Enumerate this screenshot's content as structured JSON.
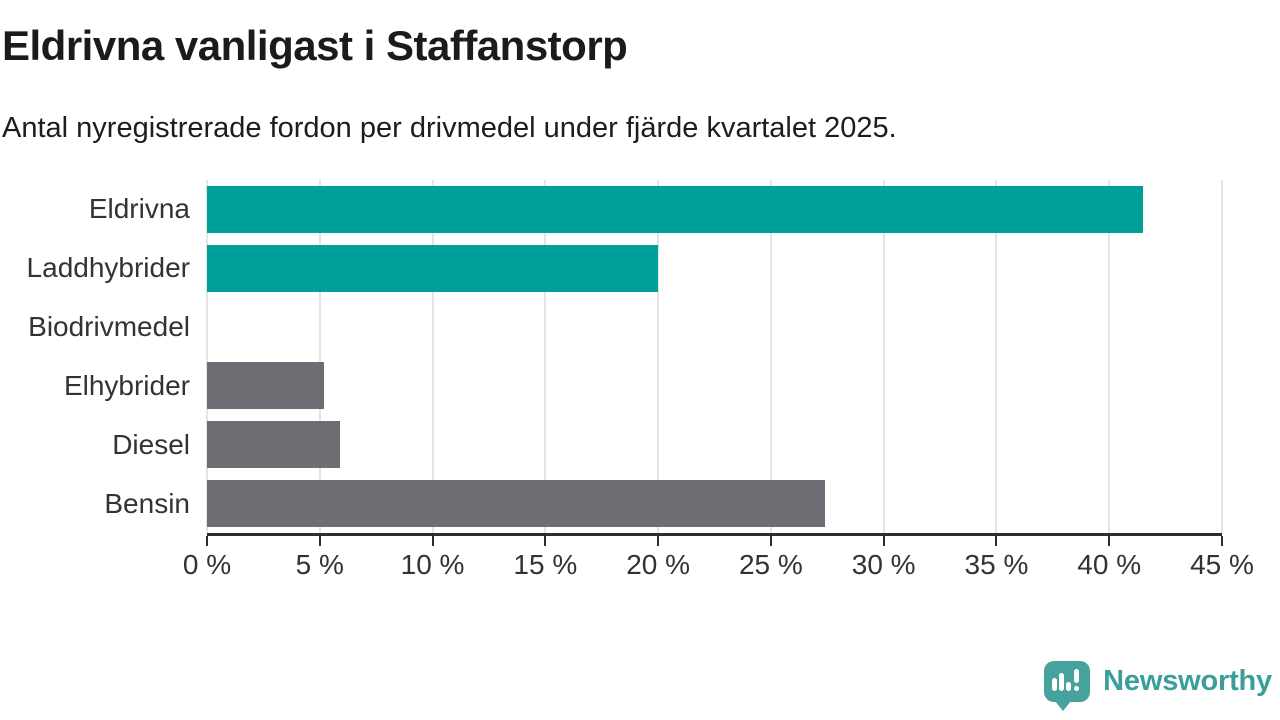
{
  "header": {
    "title": "Eldrivna vanligast i Staffanstorp",
    "subtitle": "Antal nyregistrerade fordon per drivmedel under fjärde kvartalet 2025."
  },
  "chart_data": {
    "type": "bar",
    "orientation": "horizontal",
    "title": "Eldrivna vanligast i Staffanstorp",
    "subtitle": "Antal nyregistrerade fordon per drivmedel under fjärde kvartalet 2025.",
    "categories": [
      "Eldrivna",
      "Laddhybrider",
      "Biodrivmedel",
      "Elhybrider",
      "Diesel",
      "Bensin"
    ],
    "values": [
      41.5,
      20.0,
      0,
      5.2,
      5.9,
      27.4
    ],
    "unit": "%",
    "bar_colors": [
      "#00a09a",
      "#00a09a",
      "#00a09a",
      "#6e6d74",
      "#6e6d74",
      "#6e6d74"
    ],
    "accent_teal": "#00a09a",
    "accent_gray": "#6e6d74",
    "xlim": [
      0,
      45
    ],
    "x_ticks": [
      0,
      5,
      10,
      15,
      20,
      25,
      30,
      35,
      40,
      45
    ],
    "x_tick_labels": [
      "0 %",
      "5 %",
      "10 %",
      "15 %",
      "20 %",
      "25 %",
      "30 %",
      "35 %",
      "40 %",
      "45 %"
    ],
    "xlabel": "",
    "ylabel": "",
    "grid": true,
    "legend": "none",
    "axis_color": "#2d2d2d",
    "gridline_color": "#e4e4e4",
    "label_color": "#333333"
  },
  "branding": {
    "logo_text": "Newsworthy",
    "logo_text_color": "#3a9e9a",
    "logo_icon_color": "#45a29d"
  }
}
